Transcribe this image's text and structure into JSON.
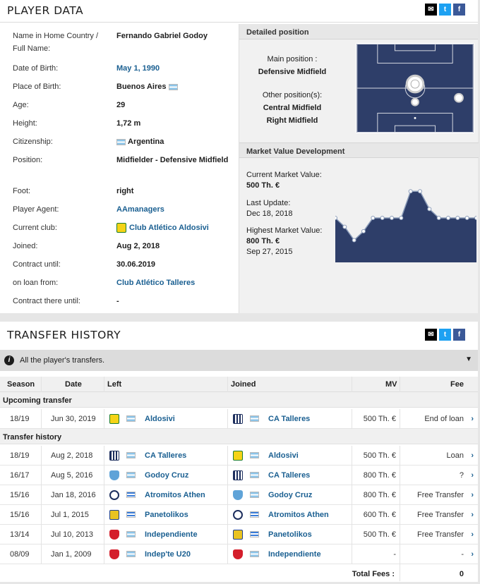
{
  "player_data": {
    "title": "PLAYER DATA",
    "rows": [
      {
        "label": "Name in Home Country / Full Name:",
        "value": "Fernando Gabriel Godoy",
        "type": "text"
      },
      {
        "label": "Date of Birth:",
        "value": "May 1, 1990",
        "type": "link"
      },
      {
        "label": "Place of Birth:",
        "value": "Buenos Aires",
        "type": "flag"
      },
      {
        "label": "Age:",
        "value": "29",
        "type": "text"
      },
      {
        "label": "Height:",
        "value": "1,72 m",
        "type": "text"
      },
      {
        "label": "Citizenship:",
        "value": "Argentina",
        "type": "flagpre"
      },
      {
        "label": "Position:",
        "value": "Midfielder - Defensive Midfield",
        "type": "text"
      },
      {
        "label": "Foot:",
        "value": "right",
        "type": "text"
      },
      {
        "label": "Player Agent:",
        "value": "AAmanagers",
        "type": "link"
      },
      {
        "label": "Current club:",
        "value": "Club Atlético Aldosivi",
        "type": "club"
      },
      {
        "label": "Joined:",
        "value": "Aug 2, 2018",
        "type": "text"
      },
      {
        "label": "Contract until:",
        "value": "30.06.2019",
        "type": "text"
      },
      {
        "label": "on loan from:",
        "value": "Club Atlético Talleres",
        "type": "link"
      },
      {
        "label": "Contract there until:",
        "value": "-",
        "type": "text"
      }
    ]
  },
  "detailed_position": {
    "title": "Detailed position",
    "main_label": "Main position :",
    "main_value": "Defensive Midfield",
    "other_label": "Other position(s):",
    "other_values": [
      "Central Midfield",
      "Right Midfield"
    ]
  },
  "market_value": {
    "title": "Market Value Development",
    "current_label": "Current Market Value:",
    "current_value": "500 Th. €",
    "update_label": "Last Update:",
    "update_value": "Dec 18, 2018",
    "highest_label": "Highest Market Value:",
    "highest_value": "800 Th. €",
    "highest_date": "Sep 27, 2015"
  },
  "chart_data": {
    "type": "area",
    "values": [
      500,
      400,
      250,
      350,
      500,
      500,
      500,
      500,
      800,
      800,
      600,
      500,
      500,
      500,
      500,
      500
    ],
    "colors": {
      "fill": "#2e3e69",
      "line": "#8a9bb8"
    }
  },
  "transfer_history": {
    "title": "TRANSFER HISTORY",
    "info": "All the player's transfers.",
    "headers": {
      "season": "Season",
      "date": "Date",
      "left": "Left",
      "joined": "Joined",
      "mv": "MV",
      "fee": "Fee"
    },
    "upcoming_label": "Upcoming transfer",
    "history_label": "Transfer history",
    "upcoming": [
      {
        "season": "18/19",
        "date": "Jun 30, 2019",
        "left": "Aldosivi",
        "left_crest": "c-ald",
        "left_flag": "ar",
        "joined": "CA Talleres",
        "joined_crest": "c-tal",
        "joined_flag": "ar",
        "mv": "500 Th. €",
        "fee": "End of loan"
      }
    ],
    "rows": [
      {
        "season": "18/19",
        "date": "Aug 2, 2018",
        "left": "CA Talleres",
        "left_crest": "c-tal",
        "left_flag": "ar",
        "joined": "Aldosivi",
        "joined_crest": "c-ald",
        "joined_flag": "ar",
        "mv": "500 Th. €",
        "fee": "Loan"
      },
      {
        "season": "16/17",
        "date": "Aug 5, 2016",
        "left": "Godoy Cruz",
        "left_crest": "c-god",
        "left_flag": "ar",
        "joined": "CA Talleres",
        "joined_crest": "c-tal",
        "joined_flag": "ar",
        "mv": "800 Th. €",
        "fee": "?"
      },
      {
        "season": "15/16",
        "date": "Jan 18, 2016",
        "left": "Atromitos Athen",
        "left_crest": "c-atr",
        "left_flag": "gr",
        "joined": "Godoy Cruz",
        "joined_crest": "c-god",
        "joined_flag": "ar",
        "mv": "800 Th. €",
        "fee": "Free Transfer"
      },
      {
        "season": "15/16",
        "date": "Jul 1, 2015",
        "left": "Panetolikos",
        "left_crest": "c-pan",
        "left_flag": "gr",
        "joined": "Atromitos Athen",
        "joined_crest": "c-atr",
        "joined_flag": "gr",
        "mv": "600 Th. €",
        "fee": "Free Transfer"
      },
      {
        "season": "13/14",
        "date": "Jul 10, 2013",
        "left": "Independiente",
        "left_crest": "c-ind",
        "left_flag": "ar",
        "joined": "Panetolikos",
        "joined_crest": "c-pan",
        "joined_flag": "gr",
        "mv": "500 Th. €",
        "fee": "Free Transfer"
      },
      {
        "season": "08/09",
        "date": "Jan 1, 2009",
        "left": "Indep'te U20",
        "left_crest": "c-ind",
        "left_flag": "ar",
        "joined": "Independiente",
        "joined_crest": "c-ind",
        "joined_flag": "ar",
        "mv": "-",
        "fee": "-"
      }
    ],
    "total_label": "Total Fees :",
    "total_value": "0"
  }
}
